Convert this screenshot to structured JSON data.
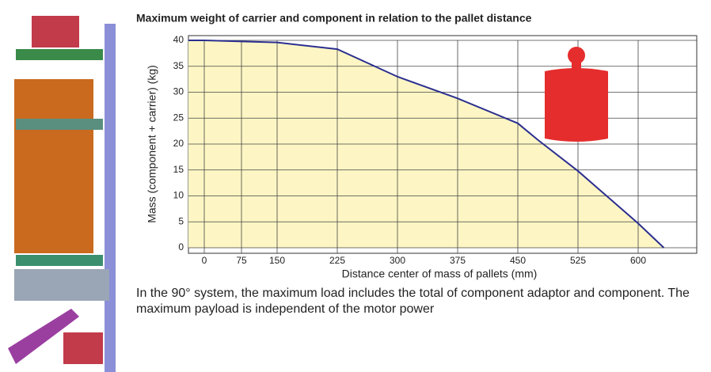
{
  "chart_data": {
    "type": "area",
    "title": "Maximum weight of carrier and component in relation to the pallet distance",
    "x_label": "Distance center of mass of pallets (mm)",
    "y_label": "Mass (component + carrier) (kg)",
    "x": [
      0,
      150,
      225,
      300,
      375,
      450,
      475,
      525,
      600,
      632
    ],
    "values": [
      40,
      39.6,
      38.3,
      33,
      28.8,
      24,
      20.8,
      14.8,
      4.7,
      0
    ],
    "color": "#2b2f8f",
    "fill": "#fdf6c4",
    "xticks": [
      0,
      75,
      150,
      225,
      300,
      375,
      450,
      525,
      600
    ],
    "ylim": [
      0,
      40
    ],
    "yticks": [
      0,
      5,
      10,
      15,
      20,
      25,
      30,
      35,
      40
    ],
    "grid": true
  },
  "caption": "In the 90° system, the maximum load includes the total of component adaptor and component. The maximum payload is independent of the motor power"
}
